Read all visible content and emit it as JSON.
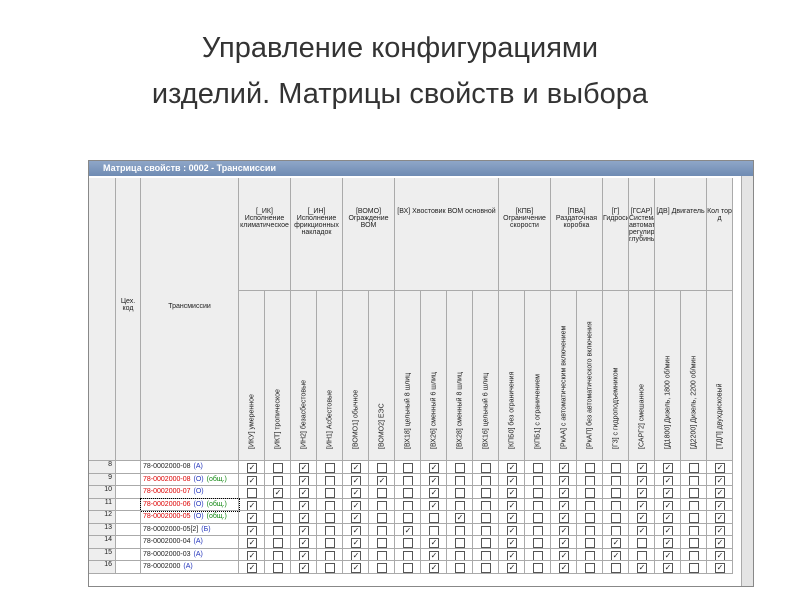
{
  "slide": {
    "title_lines": [
      "Управление конфигурациями",
      "изделий. Матрицы свойств и выбора"
    ]
  },
  "window": {
    "title": "Матрица свойств : 0002 - Трансмиссии",
    "columns": {
      "num": "",
      "code": "Цех. код",
      "name": "Трансмиссии"
    },
    "groups": [
      {
        "label": "[_ИК] Исполнение климатическое",
        "subs": [
          "[ИКУ] умеренное",
          "[ИКТ] тропическое"
        ]
      },
      {
        "label": "[_ИН] Исполнение фрикционных накладок",
        "subs": [
          "[ИН2] безасбестовые",
          "[ИН1] Асбестовые"
        ]
      },
      {
        "label": "[ВОМО] Ограждение ВОМ",
        "subs": [
          "[ВОМО1] обычное",
          "[ВОМО2] ЕЭС"
        ]
      },
      {
        "label": "[ВХ] Хвостовик ВОМ основной",
        "subs": [
          "[ВХ18] цельный 8 шлиц",
          "[ВХ26] сменный 6 шлиц",
          "[ВХ28] сменный 8 шлиц",
          "[ВХ16] цельный 6 шлиц"
        ]
      },
      {
        "label": "[КПБ] Ограничение скорости",
        "subs": [
          "[КПБ0] без ограничения",
          "[КПБ1] с ограничением"
        ]
      },
      {
        "label": "[ПВА] Раздаточная коробка",
        "subs": [
          "[РкАА] с автоматическим включением",
          "[РкАП] без автоматического включения"
        ]
      },
      {
        "label": "[Г] Гидросистема",
        "subs": [
          "[Г3] с гидроподъемником"
        ]
      },
      {
        "label": "[ГСАР] Система автоматического регулирования глубины",
        "subs": [
          "[САРГ2] смешанное"
        ]
      },
      {
        "label": "[ДВ] Двигатель",
        "subs": [
          "[Д1800] Дизель, 1800 об/мин",
          "[Д2200] Дизель, 2200 об/мин"
        ]
      },
      {
        "label": "Кол тор д",
        "subs": [
          "[ТДП] двухдисковый"
        ]
      }
    ],
    "rows": [
      {
        "num": "8",
        "name": "78-0002000-08",
        "tags": [
          "(А)"
        ],
        "red": false,
        "checks": [
          1,
          0,
          1,
          0,
          1,
          0,
          0,
          1,
          0,
          0,
          1,
          0,
          1,
          0,
          0,
          1,
          1,
          0,
          1
        ]
      },
      {
        "num": "9",
        "name": "78-0002000-08",
        "tags": [
          "(О)",
          "(общ.)"
        ],
        "red": true,
        "checks": [
          1,
          0,
          1,
          0,
          1,
          1,
          0,
          1,
          0,
          0,
          1,
          0,
          1,
          0,
          0,
          1,
          1,
          0,
          1
        ]
      },
      {
        "num": "10",
        "name": "78-0002000-07",
        "tags": [
          "(О)"
        ],
        "red": true,
        "checks": [
          0,
          1,
          1,
          0,
          1,
          0,
          0,
          1,
          0,
          0,
          1,
          0,
          1,
          0,
          0,
          1,
          1,
          0,
          1
        ]
      },
      {
        "num": "11",
        "name": "78-0002000-06",
        "tags": [
          "(О)",
          "(общ.)"
        ],
        "red": true,
        "checks": [
          1,
          0,
          1,
          0,
          1,
          0,
          0,
          1,
          0,
          0,
          1,
          0,
          1,
          0,
          0,
          1,
          1,
          0,
          1
        ]
      },
      {
        "num": "12",
        "name": "78-0002000-05",
        "tags": [
          "(О)",
          "(общ.)"
        ],
        "red": true,
        "checks": [
          1,
          0,
          1,
          0,
          1,
          0,
          0,
          0,
          1,
          0,
          1,
          0,
          1,
          0,
          0,
          1,
          1,
          0,
          1
        ]
      },
      {
        "num": "13",
        "name": "78-0002000-05[2]",
        "tags": [
          "(Б)"
        ],
        "red": false,
        "checks": [
          1,
          0,
          1,
          0,
          1,
          0,
          1,
          0,
          0,
          0,
          1,
          0,
          1,
          0,
          0,
          1,
          1,
          0,
          1
        ]
      },
      {
        "num": "14",
        "name": "78-0002000-04",
        "tags": [
          "(А)"
        ],
        "red": false,
        "checks": [
          1,
          0,
          1,
          0,
          1,
          0,
          0,
          1,
          0,
          0,
          1,
          0,
          1,
          0,
          1,
          0,
          1,
          0,
          1
        ]
      },
      {
        "num": "15",
        "name": "78-0002000-03",
        "tags": [
          "(А)"
        ],
        "red": false,
        "checks": [
          1,
          0,
          1,
          0,
          1,
          0,
          0,
          1,
          0,
          0,
          1,
          0,
          1,
          0,
          1,
          0,
          1,
          0,
          1
        ]
      },
      {
        "num": "16",
        "name": "78-0002000",
        "tags": [
          "(А)"
        ],
        "red": false,
        "checks": [
          1,
          0,
          1,
          0,
          1,
          0,
          0,
          1,
          0,
          0,
          1,
          0,
          1,
          0,
          0,
          1,
          1,
          0,
          1
        ]
      }
    ]
  }
}
